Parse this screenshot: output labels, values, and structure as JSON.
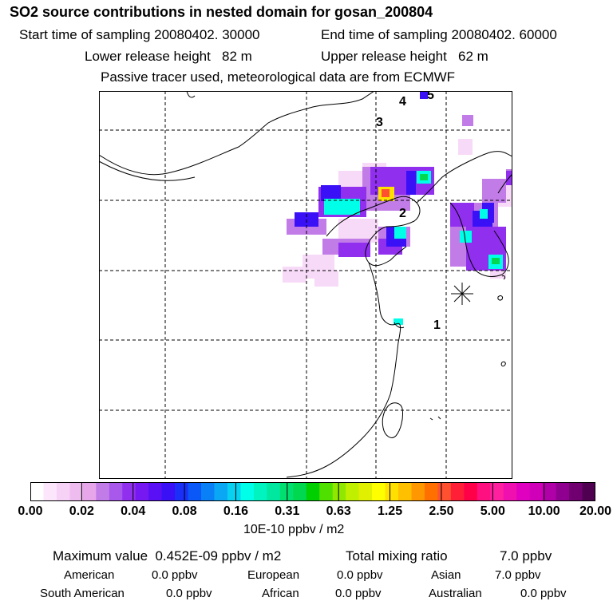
{
  "header": {
    "title": "SO2 source contributions in nested domain for gosan_200804",
    "start_time": "Start time of sampling 20080402. 30000",
    "end_time": "End time of sampling 20080402. 60000",
    "lower_release": "Lower release height   82 m",
    "upper_release": "Upper release height   62 m",
    "tracer_note": "Passive tracer used, meteorological data are from ECMWF"
  },
  "map": {
    "station_markers": [
      "1",
      "2",
      "3",
      "4",
      "5"
    ],
    "receptor": "gosan"
  },
  "colorbar": {
    "ticks": [
      "0.00",
      "0.02",
      "0.04",
      "0.08",
      "0.16",
      "0.31",
      "0.63",
      "1.25",
      "2.50",
      "5.00",
      "10.00",
      "20.00"
    ],
    "unit": "10E-10 ppbv / m2",
    "colors": [
      "#ffffff",
      "#fbe6fb",
      "#f6d2f6",
      "#efbcef",
      "#e8a6ea",
      "#c27ce8",
      "#a858ea",
      "#9030ee",
      "#7618f2",
      "#5a10f4",
      "#3a10f6",
      "#1a30f8",
      "#0a58f8",
      "#0a80f6",
      "#0aa8f4",
      "#08d0f0",
      "#00ffe8",
      "#00f4c0",
      "#00e8a0",
      "#00e070",
      "#00d850",
      "#00d000",
      "#50e000",
      "#90e800",
      "#c0f000",
      "#e0f000",
      "#ffff00",
      "#ffe000",
      "#ffc000",
      "#ff9800",
      "#ff7000",
      "#ff5030",
      "#ff2038",
      "#ff0048",
      "#ff1080",
      "#ff20a0",
      "#f010b0",
      "#e000c0",
      "#d000b8",
      "#b000a8",
      "#900090",
      "#700070",
      "#500050"
    ]
  },
  "summary": {
    "max_label": "Maximum value  0.452E-09 ppbv / m2",
    "total_label": "Total mixing ratio",
    "total_value": "7.0 ppbv",
    "contributions": [
      {
        "name": "American",
        "value": "0.0 ppbv"
      },
      {
        "name": "European",
        "value": "0.0 ppbv"
      },
      {
        "name": "Asian",
        "value": "7.0 ppbv"
      },
      {
        "name": "South American",
        "value": "0.0 ppbv"
      },
      {
        "name": "African",
        "value": "0.0 ppbv"
      },
      {
        "name": "Australian",
        "value": "0.0 ppbv"
      }
    ]
  }
}
